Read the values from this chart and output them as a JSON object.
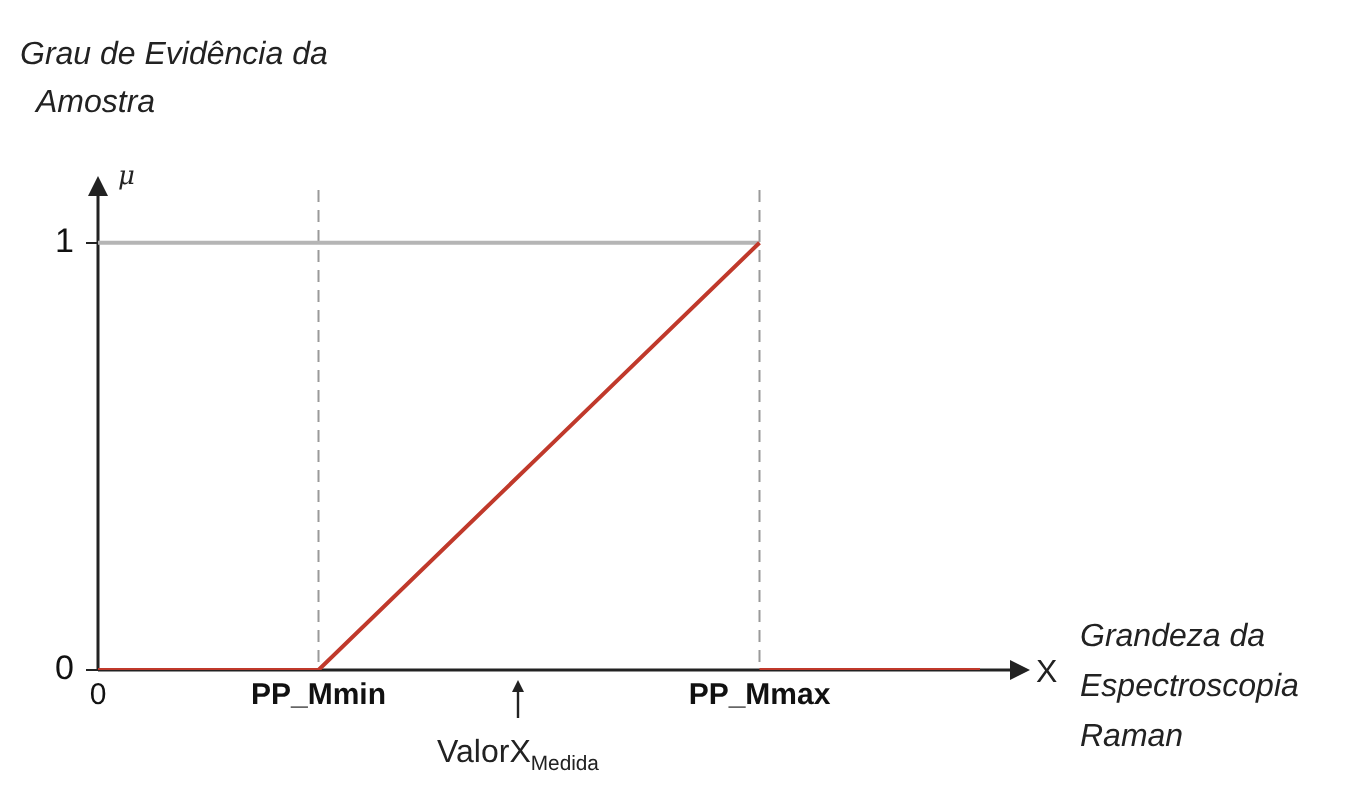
{
  "chart_data": {
    "type": "line",
    "title": "Grau de Evidência da Amostra",
    "ylabel": "μ",
    "xlabel": "X",
    "annotations": [
      "Grandeza da Espectroscopia Raman",
      "ValorX$_{Medida}$"
    ],
    "categories": [
      "0",
      "PP_Mmin",
      null,
      "PP_Mmax",
      null
    ],
    "series": [
      {
        "color": "#c0392b",
        "values": [
          0,
          0,
          0.5,
          1,
          null
        ]
      },
      {
        "color": "#c0392b",
        "values": [
          null,
          null,
          null,
          0,
          0
        ]
      },
      {
        "color": "#b5b5b5",
        "values": [
          1,
          1,
          1,
          1,
          null
        ]
      }
    ],
    "ylim": [
      0,
      1.1
    ],
    "yticks": [
      0,
      1
    ],
    "ref_lines": [
      {
        "axis": "x",
        "value": "PP_Mmin",
        "color": "#9a9a9a",
        "line_style": "dashed"
      },
      {
        "axis": "x",
        "value": "PP_Mmax",
        "color": "#9a9a9a",
        "line_style": "dashed"
      }
    ],
    "grid": false,
    "legend": false,
    "marker": "none",
    "line_style": "solid"
  }
}
